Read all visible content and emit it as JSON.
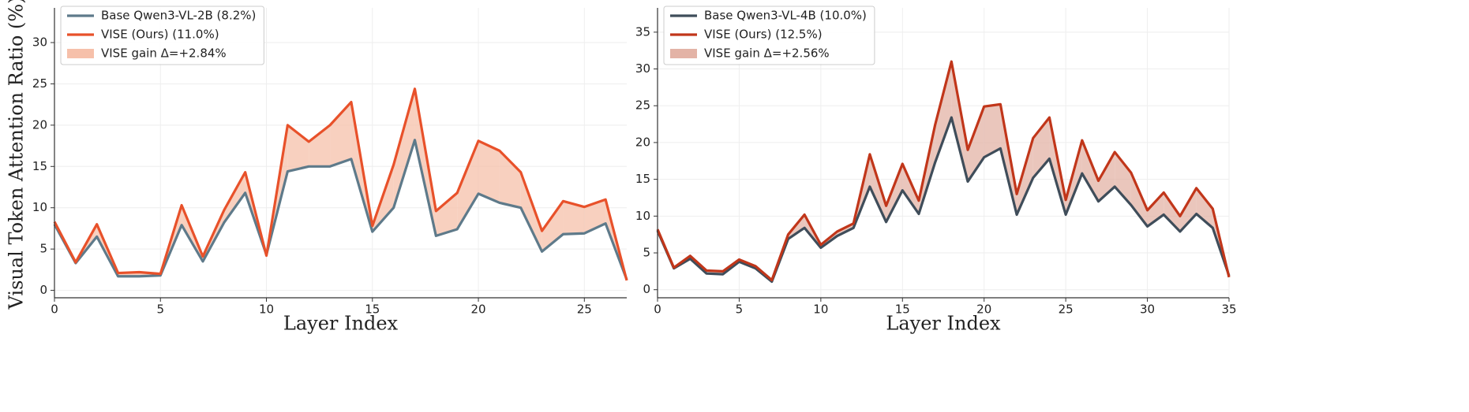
{
  "chart_data": [
    {
      "type": "line",
      "xlabel": "Layer Index",
      "ylabel": "Visual Token Attention Ratio (%)",
      "x": [
        0,
        1,
        2,
        3,
        4,
        5,
        6,
        7,
        8,
        9,
        10,
        11,
        12,
        13,
        14,
        15,
        16,
        17,
        18,
        19,
        20,
        21,
        22,
        23,
        24,
        25,
        26,
        27
      ],
      "xlim": [
        0,
        27
      ],
      "xticks": [
        0,
        5,
        10,
        15,
        20,
        25
      ],
      "ylim": [
        -0.9,
        34.2
      ],
      "yticks": [
        0,
        5,
        10,
        15,
        20,
        25,
        30
      ],
      "grid": true,
      "legend": "upper left",
      "series": [
        {
          "name": "Base Qwen3-VL-2B (8.2%)",
          "color": "#5e7a8a",
          "values": [
            8.0,
            3.3,
            6.5,
            1.7,
            1.7,
            1.8,
            7.9,
            3.5,
            8.2,
            11.8,
            4.3,
            14.4,
            15.0,
            15.0,
            15.9,
            7.1,
            10.0,
            18.2,
            6.6,
            7.4,
            11.7,
            10.6,
            10.0,
            4.7,
            6.8,
            6.9,
            8.1,
            1.3
          ]
        },
        {
          "name": "VISE (Ours) (11.0%)",
          "color": "#e8512a",
          "values": [
            8.3,
            3.4,
            8.0,
            2.1,
            2.2,
            2.0,
            10.3,
            4.1,
            9.7,
            14.3,
            4.2,
            20.0,
            18.0,
            20.0,
            22.8,
            7.8,
            15.2,
            24.4,
            9.6,
            11.8,
            18.1,
            16.9,
            14.3,
            7.2,
            10.8,
            10.1,
            11.0,
            1.2
          ]
        }
      ],
      "band": {
        "name": "VISE gain Δ=+2.84%",
        "color": "#f6c0aa"
      }
    },
    {
      "type": "line",
      "xlabel": "Layer Index",
      "x": [
        0,
        1,
        2,
        3,
        4,
        5,
        6,
        7,
        8,
        9,
        10,
        11,
        12,
        13,
        14,
        15,
        16,
        17,
        18,
        19,
        20,
        21,
        22,
        23,
        24,
        25,
        26,
        27,
        28,
        29,
        30,
        31,
        32,
        33,
        34,
        35
      ],
      "xlim": [
        0,
        35
      ],
      "xticks": [
        0,
        5,
        10,
        15,
        20,
        25,
        30,
        35
      ],
      "ylim": [
        -1.1,
        38.3
      ],
      "yticks": [
        0,
        5,
        10,
        15,
        20,
        25,
        30,
        35
      ],
      "grid": true,
      "legend": "upper left",
      "series": [
        {
          "name": "Base Qwen3-VL-4B (10.0%)",
          "color": "#3f4d5a",
          "values": [
            8.0,
            2.9,
            4.2,
            2.2,
            2.1,
            3.8,
            2.9,
            1.1,
            6.9,
            8.4,
            5.7,
            7.3,
            8.4,
            14.0,
            9.2,
            13.5,
            10.3,
            17.3,
            23.4,
            14.7,
            18.0,
            19.2,
            10.2,
            15.2,
            17.8,
            10.2,
            15.8,
            12.0,
            14.0,
            11.5,
            8.6,
            10.2,
            7.9,
            10.3,
            8.4,
            1.9
          ]
        },
        {
          "name": "VISE (Ours) (12.5%)",
          "color": "#c1361a",
          "values": [
            8.2,
            3.0,
            4.6,
            2.6,
            2.5,
            4.1,
            3.2,
            1.3,
            7.5,
            10.2,
            6.1,
            7.9,
            9.0,
            18.4,
            11.4,
            17.1,
            12.1,
            22.4,
            31.0,
            19.0,
            24.9,
            25.2,
            13.0,
            20.6,
            23.4,
            12.2,
            20.3,
            14.8,
            18.7,
            15.9,
            10.8,
            13.2,
            10.0,
            13.8,
            11.0,
            1.7
          ]
        }
      ],
      "band": {
        "name": "VISE gain Δ=+2.56%",
        "color": "#e3b3a6"
      }
    }
  ]
}
